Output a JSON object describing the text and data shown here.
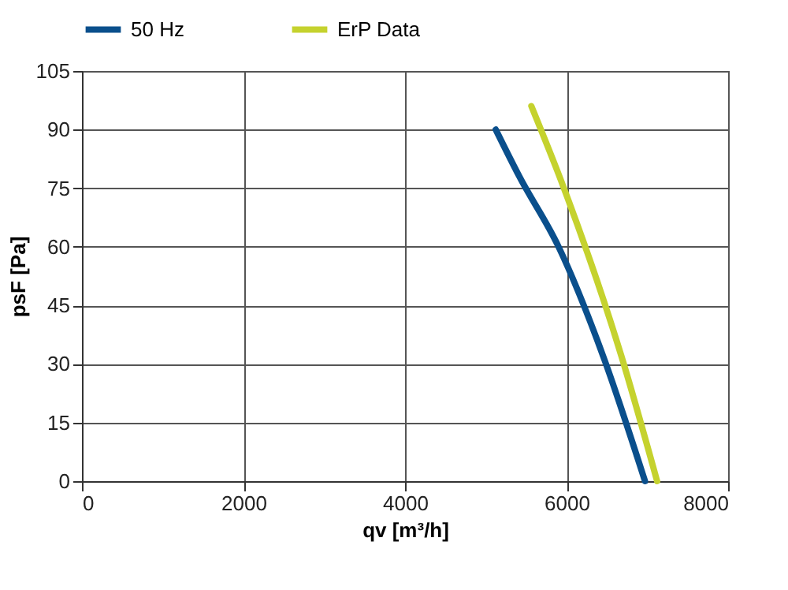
{
  "chart_data": {
    "type": "line",
    "xlabel": "qv [m³/h]",
    "ylabel": "psF [Pa]",
    "xlim": [
      0,
      8000
    ],
    "xticks": [
      0,
      2000,
      4000,
      6000,
      8000
    ],
    "ylim": [
      0,
      105
    ],
    "yticks": [
      0,
      15,
      30,
      45,
      60,
      75,
      90,
      105
    ],
    "grid": true,
    "legend": "top",
    "marker": "none",
    "line_style": "solid",
    "series": [
      {
        "name": "50 Hz",
        "color": "#0a4f8c",
        "x": [
          5123,
          5415,
          5901,
          6453,
          6971
        ],
        "values": [
          90,
          78,
          60,
          32,
          0
        ]
      },
      {
        "name": "ErP Data",
        "color": "#c5d22e",
        "x": [
          5564,
          5967,
          6679,
          7121
        ],
        "values": [
          96,
          75,
          32,
          0
        ]
      }
    ]
  }
}
